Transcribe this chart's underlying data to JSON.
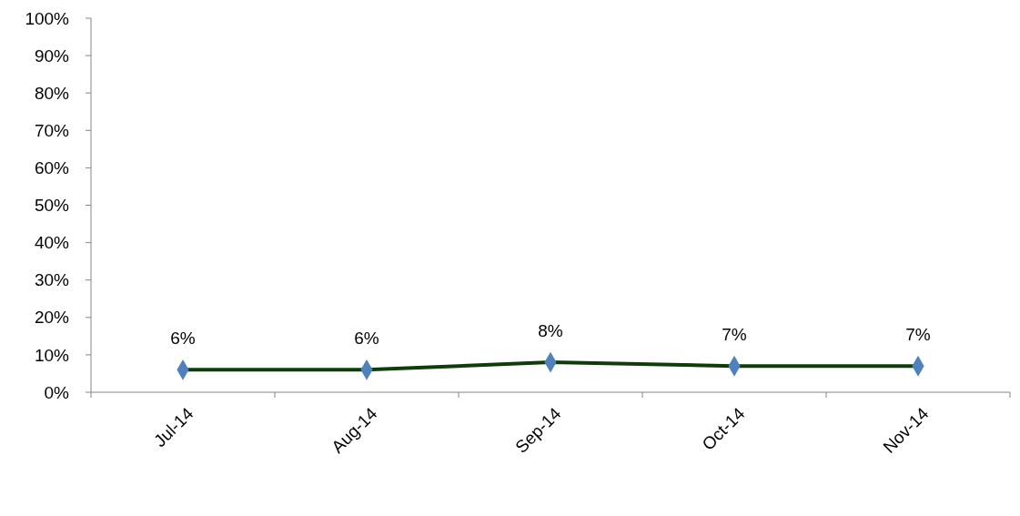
{
  "chart_data": {
    "type": "line",
    "categories": [
      "Jul-14",
      "Aug-14",
      "Sep-14",
      "Oct-14",
      "Nov-14"
    ],
    "series": [
      {
        "color": "#0f3d0a",
        "values": [
          6,
          6,
          8,
          7,
          7
        ],
        "value_labels": [
          "6%",
          "6%",
          "8%",
          "7%",
          "7%"
        ]
      }
    ],
    "ylim": [
      0,
      100
    ],
    "yticks": [
      {
        "value": 0,
        "label": "0%"
      },
      {
        "value": 10,
        "label": "10%"
      },
      {
        "value": 20,
        "label": "20%"
      },
      {
        "value": 30,
        "label": "30%"
      },
      {
        "value": 40,
        "label": "40%"
      },
      {
        "value": 50,
        "label": "50%"
      },
      {
        "value": 60,
        "label": "60%"
      },
      {
        "value": 70,
        "label": "70%"
      },
      {
        "value": 80,
        "label": "80%"
      },
      {
        "value": 90,
        "label": "90%"
      },
      {
        "value": 100,
        "label": "100%"
      }
    ],
    "marker": "diamond"
  }
}
